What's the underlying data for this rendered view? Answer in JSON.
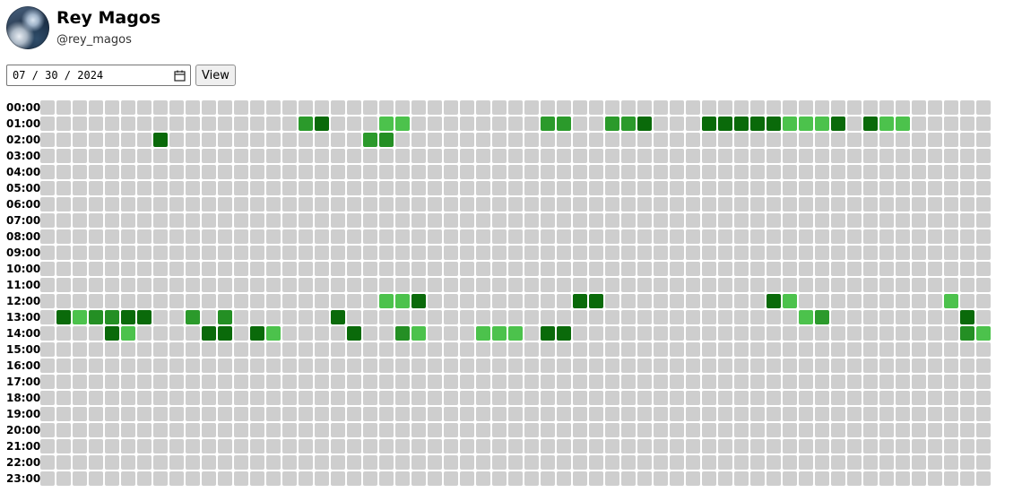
{
  "profile": {
    "display_name": "Rey Magos",
    "handle": "@rey_magos",
    "avatar_icon": "stormy-sky-avatar"
  },
  "controls": {
    "date_display": "07 / 30 / 2024",
    "calendar_icon": "calendar-icon",
    "view_label": "View"
  },
  "legend_colors": {
    "empty": "#cecece",
    "level1": "#4cc24c",
    "level2": "#2b9a2b",
    "level3": "#248f24",
    "level4": "#0a6a0a"
  },
  "heatmap": {
    "columns": 59,
    "hours": [
      "00:00",
      "01:00",
      "02:00",
      "03:00",
      "04:00",
      "05:00",
      "06:00",
      "07:00",
      "08:00",
      "09:00",
      "10:00",
      "11:00",
      "12:00",
      "13:00",
      "14:00",
      "15:00",
      "16:00",
      "17:00",
      "18:00",
      "19:00",
      "20:00",
      "21:00",
      "22:00",
      "23:00"
    ],
    "active": {
      "01:00": [
        [
          16,
          2
        ],
        [
          17,
          4
        ],
        [
          21,
          1
        ],
        [
          22,
          1
        ],
        [
          31,
          2
        ],
        [
          32,
          2
        ],
        [
          35,
          2
        ],
        [
          36,
          2
        ],
        [
          37,
          4
        ],
        [
          41,
          4
        ],
        [
          42,
          4
        ],
        [
          43,
          4
        ],
        [
          44,
          4
        ],
        [
          45,
          4
        ],
        [
          46,
          1
        ],
        [
          47,
          1
        ],
        [
          48,
          1
        ],
        [
          49,
          4
        ],
        [
          51,
          4
        ],
        [
          52,
          1
        ],
        [
          53,
          1
        ]
      ],
      "02:00": [
        [
          7,
          4
        ],
        [
          20,
          2
        ],
        [
          21,
          3
        ]
      ],
      "12:00": [
        [
          21,
          1
        ],
        [
          22,
          1
        ],
        [
          23,
          4
        ],
        [
          33,
          4
        ],
        [
          34,
          4
        ],
        [
          45,
          4
        ],
        [
          46,
          1
        ],
        [
          56,
          1
        ]
      ],
      "13:00": [
        [
          1,
          4
        ],
        [
          2,
          1
        ],
        [
          3,
          3
        ],
        [
          4,
          3
        ],
        [
          5,
          4
        ],
        [
          6,
          4
        ],
        [
          9,
          2
        ],
        [
          11,
          3
        ],
        [
          18,
          4
        ],
        [
          47,
          1
        ],
        [
          48,
          2
        ],
        [
          57,
          4
        ]
      ],
      "14:00": [
        [
          4,
          4
        ],
        [
          5,
          1
        ],
        [
          10,
          4
        ],
        [
          11,
          4
        ],
        [
          13,
          4
        ],
        [
          14,
          1
        ],
        [
          19,
          4
        ],
        [
          22,
          3
        ],
        [
          23,
          1
        ],
        [
          27,
          1
        ],
        [
          28,
          1
        ],
        [
          29,
          1
        ],
        [
          31,
          4
        ],
        [
          32,
          4
        ],
        [
          57,
          3
        ],
        [
          58,
          1
        ]
      ]
    }
  }
}
